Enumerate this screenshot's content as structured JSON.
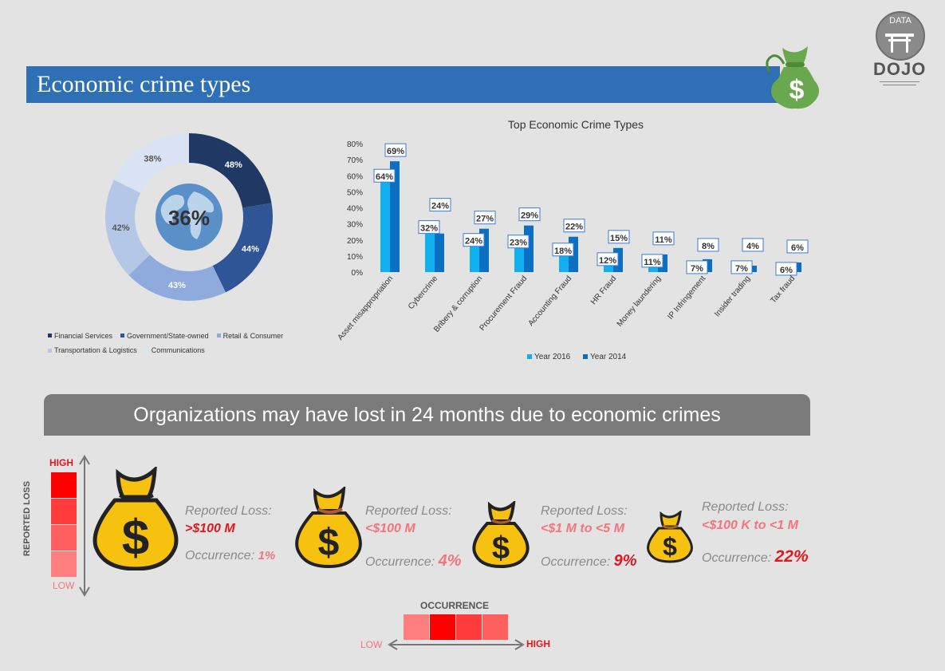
{
  "header": {
    "title": "Economic crime types"
  },
  "logo": {
    "top_text": "DATA",
    "bottom_text": "DOJO"
  },
  "donut": {
    "center_label": "36%",
    "chart_data": {
      "type": "pie",
      "slices": [
        {
          "name": "Financial Services",
          "value": 48,
          "label": "48%",
          "color": "#1f3864"
        },
        {
          "name": "Government/State-owned",
          "value": 44,
          "label": "44%",
          "color": "#2f5597"
        },
        {
          "name": "Retail & Consumer",
          "value": 43,
          "label": "43%",
          "color": "#8faadc"
        },
        {
          "name": "Transportation & Logistics",
          "value": 42,
          "label": "42%",
          "color": "#b4c7e7"
        },
        {
          "name": "Communications",
          "value": 38,
          "label": "38%",
          "color": "#dae3f3"
        }
      ]
    }
  },
  "bar": {
    "chart_data": {
      "type": "bar",
      "title": "Top Economic Crime Types",
      "categories": [
        "Asset misappropriation",
        "Cybercrime",
        "Bribery & corruption",
        "Procurement Fraud",
        "Accounting Fraud",
        "HR Fraud",
        "Money laundering",
        "IP Infringement",
        "Insider trading",
        "Tax fraud"
      ],
      "series": [
        {
          "name": "Year 2016",
          "values": [
            64,
            32,
            24,
            23,
            18,
            12,
            11,
            7,
            7,
            6
          ],
          "color": "#12b0f0"
        },
        {
          "name": "Year 2014",
          "values": [
            69,
            24,
            27,
            29,
            22,
            15,
            11,
            8,
            4,
            6
          ],
          "color": "#0b6fc4"
        }
      ],
      "ylim": [
        0,
        80
      ],
      "yticks": [
        "0%",
        "10%",
        "20%",
        "30%",
        "40%",
        "50%",
        "60%",
        "70%",
        "80%"
      ],
      "legend_position": "bottom"
    }
  },
  "loss": {
    "title": "Organizations may have lost in 24 months due to economic crimes",
    "axis_label": "REPORTED LOSS",
    "high": "HIGH",
    "low": "LOW",
    "occurrence_label": "OCCURRENCE",
    "occ_high": "HIGH",
    "occ_low": "LOW",
    "reported_label": "Reported Loss:",
    "occurrence_prefix": "Occurrence:",
    "items": [
      {
        "loss": ">$100 M",
        "occurrence": "1%"
      },
      {
        "loss": "<$100 M",
        "occurrence": "4%"
      },
      {
        "loss": "<$1 M to <5 M",
        "occurrence": "9%"
      },
      {
        "loss": "<$100 K to <1 M",
        "occurrence": "22%"
      }
    ]
  },
  "colors": {
    "accent": "#2f6fb5",
    "gray_banner": "#7a7a7a",
    "red": "#e0191e",
    "pink": "#f4757b"
  }
}
